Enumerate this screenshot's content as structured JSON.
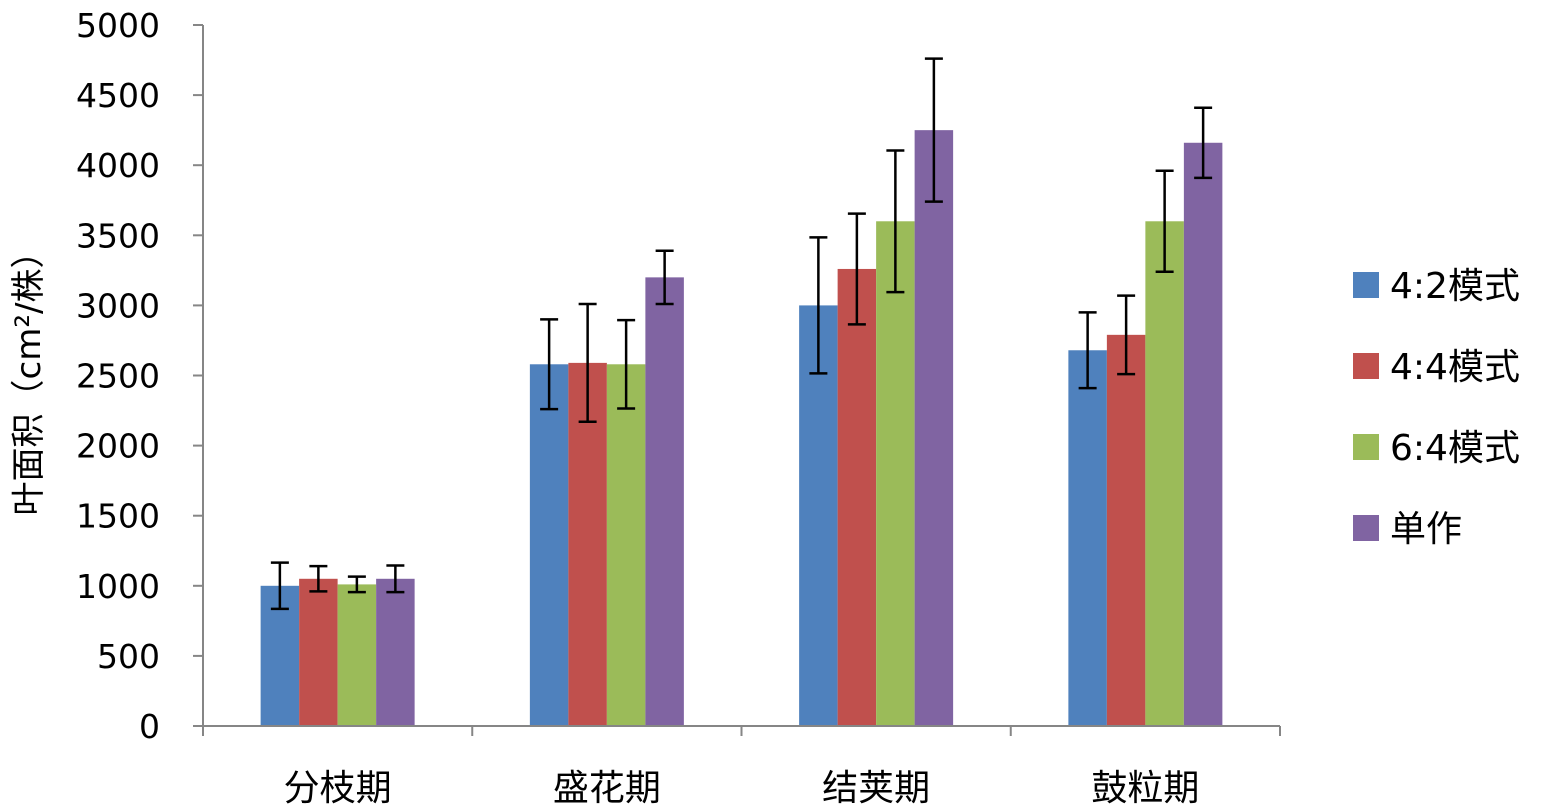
{
  "chart_data": {
    "type": "bar",
    "title": "",
    "xlabel": "",
    "ylabel": "叶面积（cm²/株）",
    "ylim": [
      0,
      5000
    ],
    "yticks": [
      0,
      500,
      1000,
      1500,
      2000,
      2500,
      3000,
      3500,
      4000,
      4500,
      5000
    ],
    "grid": false,
    "legend_position": "right",
    "categories": [
      "分枝期",
      "盛花期",
      "结荚期",
      "鼓粒期"
    ],
    "series": [
      {
        "name": "4:2模式",
        "color": "#4F81BD",
        "values": [
          1000,
          2580,
          3000,
          2680
        ],
        "errors": [
          165,
          320,
          485,
          270
        ]
      },
      {
        "name": "4:4模式",
        "color": "#C0504D",
        "values": [
          1050,
          2590,
          3260,
          2790
        ],
        "errors": [
          90,
          420,
          395,
          280
        ]
      },
      {
        "name": "6:4模式",
        "color": "#9BBB59",
        "values": [
          1010,
          2580,
          3600,
          3600
        ],
        "errors": [
          55,
          315,
          505,
          360
        ]
      },
      {
        "name": "单作",
        "color": "#8064A2",
        "values": [
          1050,
          3200,
          4250,
          4160
        ],
        "errors": [
          95,
          190,
          510,
          250
        ]
      }
    ]
  }
}
